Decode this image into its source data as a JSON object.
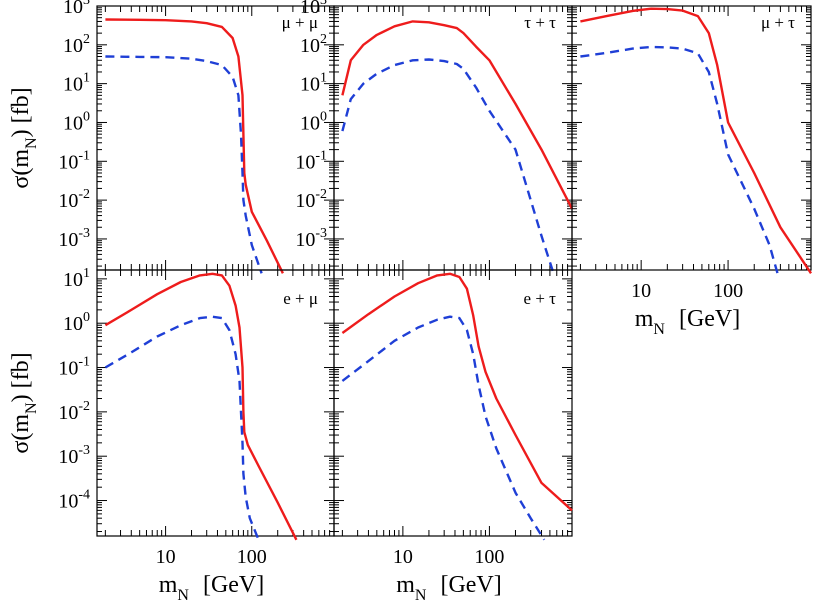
{
  "chart_data": {
    "type": "line",
    "xscale": "log",
    "yscale": "log",
    "xlim": [
      1.6,
      900
    ],
    "xlabel_main": "m",
    "xlabel_sub": "N",
    "xlabel_unit": "[GeV]",
    "ylabel_main": "σ(m",
    "ylabel_sub": "N",
    "ylabel_unit": ") [fb]",
    "x_tick_labels": [
      "10",
      "100"
    ],
    "x_tick_values": [
      10,
      100
    ],
    "panels": [
      {
        "id": "mu-mu",
        "label": "μ + μ",
        "ylim_exp": [
          -3.8,
          3
        ],
        "ytick_exps": [
          3,
          2,
          1,
          0,
          -1,
          -2,
          -3
        ],
        "series": [
          {
            "name": "solid",
            "style": "solid",
            "x": [
              2,
              5,
              10,
              20,
              30,
              45,
              60,
              70,
              78,
              80,
              82,
              85,
              100,
              150,
              230
            ],
            "y": [
              450,
              440,
              430,
              400,
              360,
              290,
              150,
              50,
              5,
              0.5,
              0.05,
              0.025,
              0.005,
              0.0009,
              0.00013
            ]
          },
          {
            "name": "dashed",
            "style": "dashed",
            "x": [
              2,
              5,
              10,
              20,
              30,
              45,
              60,
              70,
              75,
              78,
              80,
              85,
              100,
              130
            ],
            "y": [
              50,
              49,
              48,
              44,
              38,
              30,
              15,
              5,
              0.5,
              0.05,
              0.01,
              0.004,
              0.0007,
              0.00013
            ]
          }
        ]
      },
      {
        "id": "tau-tau",
        "label": "τ + τ",
        "ylim_exp": [
          -3.8,
          3
        ],
        "ytick_exps": [
          3,
          2,
          1,
          0,
          -1,
          -2,
          -3
        ],
        "series": [
          {
            "name": "solid",
            "style": "solid",
            "x": [
              2,
              2.5,
              3.5,
              5,
              8,
              13,
              20,
              30,
              42,
              50,
              70,
              100,
              200,
              400,
              900
            ],
            "y": [
              5,
              40,
              100,
              180,
              300,
              400,
              380,
              320,
              270,
              200,
              90,
              40,
              3,
              0.2,
              0.006
            ]
          },
          {
            "name": "dashed",
            "style": "dashed",
            "x": [
              2,
              2.5,
              3.5,
              5,
              8,
              13,
              20,
              30,
              42,
              50,
              70,
              100,
              200,
              400,
              550
            ],
            "y": [
              0.6,
              4,
              10,
              18,
              30,
              40,
              42,
              38,
              32,
              24,
              8,
              2,
              0.2,
              0.0012,
              0.00013
            ]
          }
        ]
      },
      {
        "id": "mu-tau",
        "label": "μ + τ",
        "ylim_exp": [
          -3.8,
          3
        ],
        "ytick_exps": [],
        "series": [
          {
            "name": "solid",
            "style": "solid",
            "x": [
              2,
              4,
              8,
              13,
              20,
              30,
              45,
              60,
              75,
              100,
              200,
              400,
              900
            ],
            "y": [
              400,
              550,
              750,
              850,
              830,
              760,
              550,
              200,
              30,
              1,
              0.05,
              0.002,
              0.00013
            ]
          },
          {
            "name": "dashed",
            "style": "dashed",
            "x": [
              2,
              4,
              8,
              13,
              20,
              30,
              45,
              60,
              75,
              100,
              200,
              300,
              370
            ],
            "y": [
              50,
              62,
              80,
              88,
              86,
              80,
              60,
              20,
              3,
              0.15,
              0.006,
              0.0007,
              0.00013
            ]
          }
        ]
      },
      {
        "id": "e-mu",
        "label": "e +  μ",
        "ylim_exp": [
          -4.8,
          1.2
        ],
        "ytick_exps": [
          1,
          0,
          -1,
          -2,
          -3,
          -4
        ],
        "series": [
          {
            "name": "solid",
            "style": "solid",
            "x": [
              2,
              4,
              8,
              15,
              25,
              35,
              45,
              55,
              65,
              72,
              78,
              80,
              82,
              90,
              120,
              200,
              330
            ],
            "y": [
              0.9,
              2,
              4.5,
              8.5,
              12,
              13,
              12,
              7,
              2.5,
              0.8,
              0.1,
              0.01,
              0.0035,
              0.0018,
              0.0006,
              9e-05,
              1.3e-05
            ]
          },
          {
            "name": "dashed",
            "style": "dashed",
            "x": [
              2,
              4,
              8,
              15,
              25,
              35,
              45,
              55,
              65,
              72,
              75,
              78,
              80,
              85,
              95,
              120
            ],
            "y": [
              0.1,
              0.22,
              0.5,
              0.9,
              1.3,
              1.4,
              1.3,
              0.7,
              0.2,
              0.05,
              0.01,
              0.002,
              0.0004,
              0.00012,
              4e-05,
              1.3e-05
            ]
          }
        ]
      },
      {
        "id": "e-tau",
        "label": "e + τ",
        "ylim_exp": [
          -4.8,
          1.2
        ],
        "ytick_exps": [],
        "series": [
          {
            "name": "solid",
            "style": "solid",
            "x": [
              2,
              4,
              8,
              15,
              25,
              35,
              45,
              55,
              65,
              75,
              90,
              120,
              200,
              400,
              900
            ],
            "y": [
              0.6,
              1.6,
              4,
              8,
              12,
              13,
              11,
              6,
              1.5,
              0.3,
              0.08,
              0.02,
              0.003,
              0.00025,
              6e-05
            ]
          },
          {
            "name": "dashed",
            "style": "dashed",
            "x": [
              2,
              4,
              8,
              15,
              25,
              35,
              45,
              55,
              65,
              75,
              90,
              120,
              200,
              300,
              430
            ],
            "y": [
              0.05,
              0.14,
              0.4,
              0.8,
              1.2,
              1.4,
              1.3,
              0.7,
              0.2,
              0.04,
              0.008,
              0.0015,
              0.00015,
              4e-05,
              1.3e-05
            ]
          }
        ]
      }
    ]
  }
}
